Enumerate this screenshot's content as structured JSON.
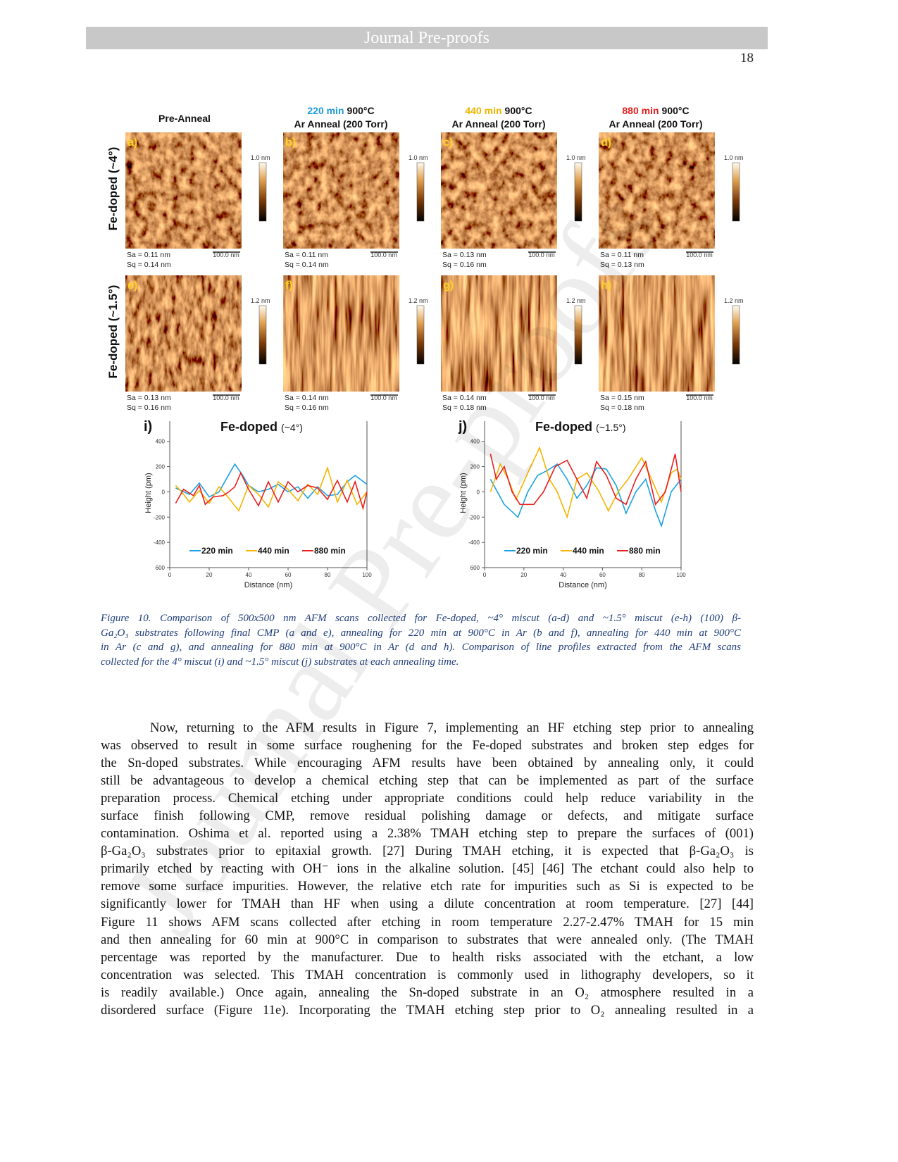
{
  "header": {
    "title": "Journal Pre-proofs",
    "page_number": "18"
  },
  "watermark": "Journal Pre-proofs",
  "figure": {
    "columns": [
      {
        "title": "Pre-Anneal"
      },
      {
        "time": "220 min",
        "time_color": "#1f9ad6",
        "temp": "900°C",
        "gas": "Ar Anneal (200 Torr)"
      },
      {
        "time": "440 min",
        "time_color": "#f0b400",
        "temp": "900°C",
        "gas": "Ar Anneal (200 Torr)"
      },
      {
        "time": "880 min",
        "time_color": "#e8201e",
        "temp": "900°C",
        "gas": "Ar Anneal (200 Torr)"
      }
    ],
    "rows": [
      {
        "label": "Fe-doped (~4°)",
        "scale_top": "1.0 nm",
        "panels": [
          {
            "letter": "a)",
            "sa": "Sa = 0.11 nm",
            "sq": "Sq = 0.14 nm",
            "scale_bar": "100.0 nm"
          },
          {
            "letter": "b)",
            "sa": "Sa = 0.11 nm",
            "sq": "Sq = 0.14 nm",
            "scale_bar": "100.0 nm"
          },
          {
            "letter": "c)",
            "sa": "Sa = 0.13 nm",
            "sq": "Sq = 0.16 nm",
            "scale_bar": "100.0 nm"
          },
          {
            "letter": "d)",
            "sa": "Sa = 0.11 nm",
            "sq": "Sq = 0.13 nm",
            "scale_bar": "100.0 nm"
          }
        ]
      },
      {
        "label": "Fe-doped (~1.5°)",
        "scale_top": "1.2 nm",
        "panels": [
          {
            "letter": "e)",
            "sa": "Sa = 0.13 nm",
            "sq": "Sq = 0.16 nm",
            "scale_bar": "100.0 nm"
          },
          {
            "letter": "f)",
            "sa": "Sa = 0.14 nm",
            "sq": "Sq = 0.16 nm",
            "scale_bar": "100.0 nm"
          },
          {
            "letter": "g)",
            "sa": "Sa = 0.14 nm",
            "sq": "Sq = 0.18 nm",
            "scale_bar": "100.0 nm"
          },
          {
            "letter": "h)",
            "sa": "Sa = 0.15 nm",
            "sq": "Sq = 0.18 nm",
            "scale_bar": "100.0 nm"
          }
        ]
      }
    ]
  },
  "chart_data": [
    {
      "type": "line",
      "panel_label": "i)",
      "title": "Fe-doped",
      "subtitle": "(~4°)",
      "x_label": "Distance (nm)",
      "y_label": "Height (pm)",
      "xlim": [
        0,
        100
      ],
      "xticks": [
        0,
        20,
        40,
        60,
        80,
        100
      ],
      "ylim": [
        -600,
        560
      ],
      "yticks": [
        {
          "value": -600,
          "label": "600"
        },
        -400,
        -200,
        0,
        200,
        400
      ],
      "series": [
        {
          "name": "220 min",
          "color": "#1ba1e2",
          "x": [
            3,
            10,
            15,
            20,
            25,
            33,
            37,
            40,
            45,
            50,
            55,
            60,
            65,
            70,
            75,
            80,
            85,
            90,
            94,
            100
          ],
          "values": [
            30,
            -20,
            70,
            -40,
            0,
            220,
            130,
            50,
            0,
            20,
            60,
            0,
            40,
            -50,
            40,
            -30,
            -20,
            80,
            130,
            60
          ]
        },
        {
          "name": "440 min",
          "color": "#f5b400",
          "x": [
            3,
            6,
            10,
            15,
            20,
            25,
            30,
            35,
            40,
            45,
            50,
            55,
            60,
            65,
            70,
            75,
            80,
            85,
            90,
            95,
            100
          ],
          "values": [
            50,
            0,
            -80,
            10,
            -90,
            40,
            -50,
            -150,
            50,
            -20,
            -120,
            80,
            20,
            -70,
            60,
            -20,
            190,
            -80,
            90,
            -100,
            0
          ]
        },
        {
          "name": "880 min",
          "color": "#e8201e",
          "x": [
            3,
            7,
            12,
            15,
            18,
            22,
            27,
            30,
            33,
            36,
            40,
            45,
            50,
            55,
            60,
            65,
            70,
            75,
            80,
            85,
            90,
            94,
            98,
            100
          ],
          "values": [
            -90,
            20,
            -30,
            50,
            -100,
            -40,
            -30,
            0,
            40,
            150,
            20,
            -110,
            80,
            -80,
            80,
            0,
            50,
            30,
            -60,
            90,
            -80,
            80,
            -130,
            0
          ]
        }
      ]
    },
    {
      "type": "line",
      "panel_label": "j)",
      "title": "Fe-doped",
      "subtitle": "(~1.5°)",
      "x_label": "Distance (nm)",
      "y_label": "Height (pm)",
      "xlim": [
        0,
        100
      ],
      "xticks": [
        0,
        20,
        40,
        60,
        80,
        100
      ],
      "ylim": [
        -600,
        560
      ],
      "yticks": [
        {
          "value": -600,
          "label": "600"
        },
        -400,
        -200,
        0,
        200,
        400
      ],
      "series": [
        {
          "name": "220 min",
          "color": "#1ba1e2",
          "x": [
            3,
            10,
            17,
            22,
            27,
            32,
            37,
            42,
            47,
            52,
            57,
            62,
            67,
            72,
            77,
            82,
            87,
            90,
            95,
            100
          ],
          "values": [
            100,
            -100,
            -200,
            0,
            130,
            170,
            220,
            100,
            -50,
            50,
            190,
            180,
            50,
            -170,
            0,
            100,
            -150,
            -270,
            0,
            100
          ]
        },
        {
          "name": "440 min",
          "color": "#f5b400",
          "x": [
            3,
            8,
            12,
            16,
            22,
            28,
            33,
            37,
            42,
            47,
            52,
            58,
            63,
            68,
            73,
            80,
            85,
            90,
            95,
            98,
            100
          ],
          "values": [
            0,
            220,
            100,
            -60,
            150,
            350,
            100,
            0,
            -200,
            100,
            150,
            10,
            -150,
            0,
            100,
            270,
            100,
            -80,
            150,
            180,
            100
          ]
        },
        {
          "name": "880 min",
          "color": "#e8201e",
          "x": [
            3,
            6,
            10,
            14,
            18,
            25,
            30,
            36,
            42,
            47,
            52,
            57,
            62,
            67,
            72,
            77,
            82,
            87,
            92,
            97,
            100
          ],
          "values": [
            300,
            100,
            200,
            0,
            -100,
            -100,
            0,
            200,
            250,
            100,
            -50,
            240,
            130,
            -50,
            -100,
            100,
            240,
            -100,
            0,
            300,
            0
          ]
        }
      ]
    }
  ],
  "caption": {
    "lines": [
      "Figure 10. Comparison of 500x500 nm AFM scans collected for Fe-doped, ~4° miscut (a-d) and ~1.5° miscut (e-h) (100) β-",
      "Ga₂O₃ substrates following final CMP (a and e), annealing for 220 min at 900°C in Ar (b and f), annealing for 440 min at 900°C",
      "in Ar (c and g), and annealing for 880 min at 900°C in Ar (d and h). Comparison of line profiles extracted from the AFM scans",
      "collected for the 4° miscut (i) and ~1.5° miscut (j) substrates at each annealing time."
    ]
  },
  "body": {
    "lines": [
      "Now, returning to the AFM results in Figure 7, implementing an HF etching step prior to annealing",
      "was observed to result in some surface roughening for the Fe-doped substrates and broken step edges for",
      "the Sn-doped substrates. While encouraging AFM results have been obtained by annealing only, it could",
      "still be advantageous to develop a chemical etching step that can be implemented as part of the surface",
      "preparation process. Chemical etching under appropriate conditions could help reduce variability in the",
      "surface finish following CMP, remove residual polishing damage or defects, and mitigate surface",
      "contamination. Oshima et al. reported using a 2.38% TMAH etching step to prepare the surfaces of (001)",
      "β-Ga₂O₃ substrates prior to epitaxial growth. [27] During TMAH etching, it is expected that β-Ga₂O₃ is",
      "primarily etched by reacting with OH⁻ ions in the alkaline solution. [45] [46] The etchant could also help to",
      "remove some surface impurities. However, the relative etch rate for impurities such as Si is expected to be",
      "significantly lower for TMAH than HF when using a dilute concentration at room temperature. [27] [44]",
      "Figure 11 shows AFM scans collected after etching in room temperature 2.27-2.47% TMAH for 15 min",
      "and then annealing for 60 min at 900°C in comparison to substrates that were annealed only. (The TMAH",
      "percentage was reported by the manufacturer. Due to health risks associated with the etchant, a low",
      "concentration was selected. This TMAH concentration is commonly used in lithography developers, so it",
      "is readily available.) Once again, annealing the Sn-doped substrate in an O₂ atmosphere resulted in a",
      "disordered surface (Figure 11e). Incorporating the TMAH etching step prior to O₂ annealing resulted in a"
    ]
  }
}
